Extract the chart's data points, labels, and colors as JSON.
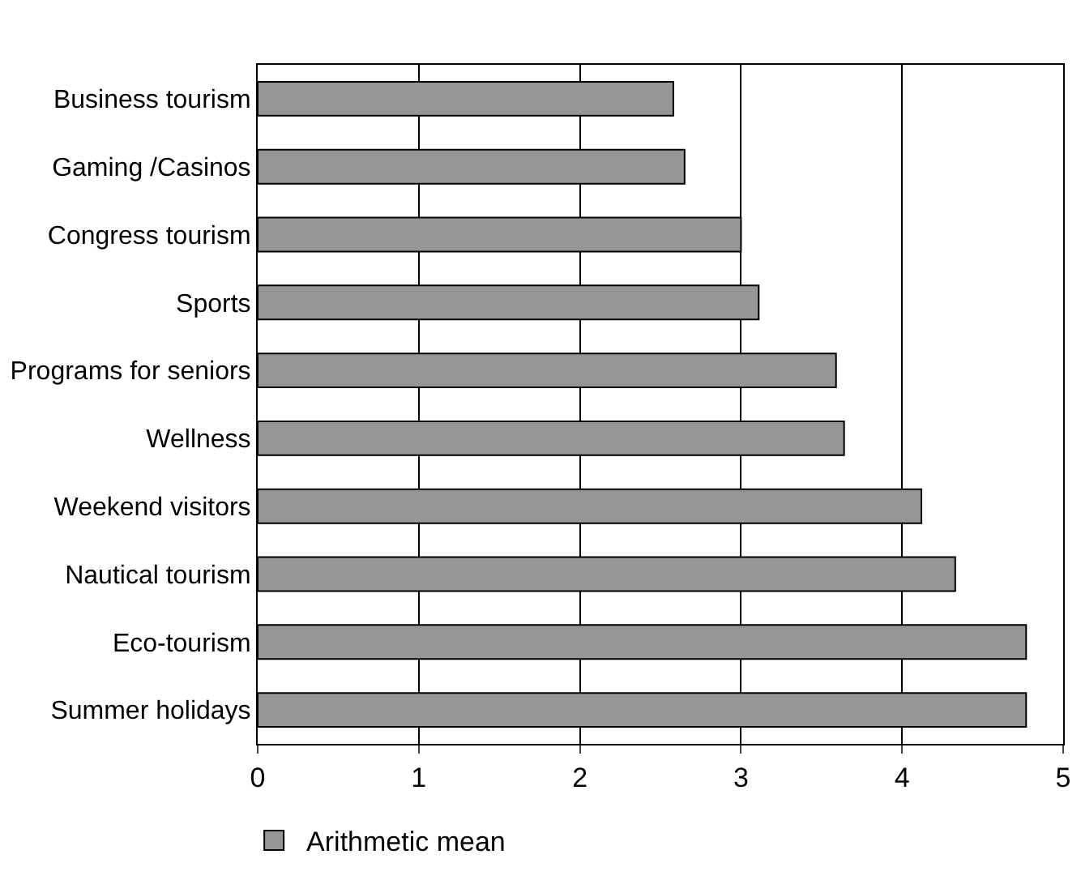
{
  "chart_data": {
    "type": "bar",
    "orientation": "horizontal",
    "categories": [
      "Business tourism",
      "Gaming /Casinos",
      "Congress tourism",
      "Sports",
      "Programs for seniors",
      "Wellness",
      "Weekend visitors",
      "Nautical tourism",
      "Eco-tourism",
      "Summer holidays"
    ],
    "series": [
      {
        "name": "Arithmetic mean",
        "color": "#969699",
        "values": [
          2.58,
          2.65,
          3.0,
          3.11,
          3.59,
          3.64,
          4.12,
          4.33,
          4.77,
          4.77
        ]
      }
    ],
    "xlim": [
      0,
      5
    ],
    "xticks": [
      0,
      1,
      2,
      3,
      4,
      5
    ],
    "grid": "x",
    "legend": "bottom left"
  }
}
